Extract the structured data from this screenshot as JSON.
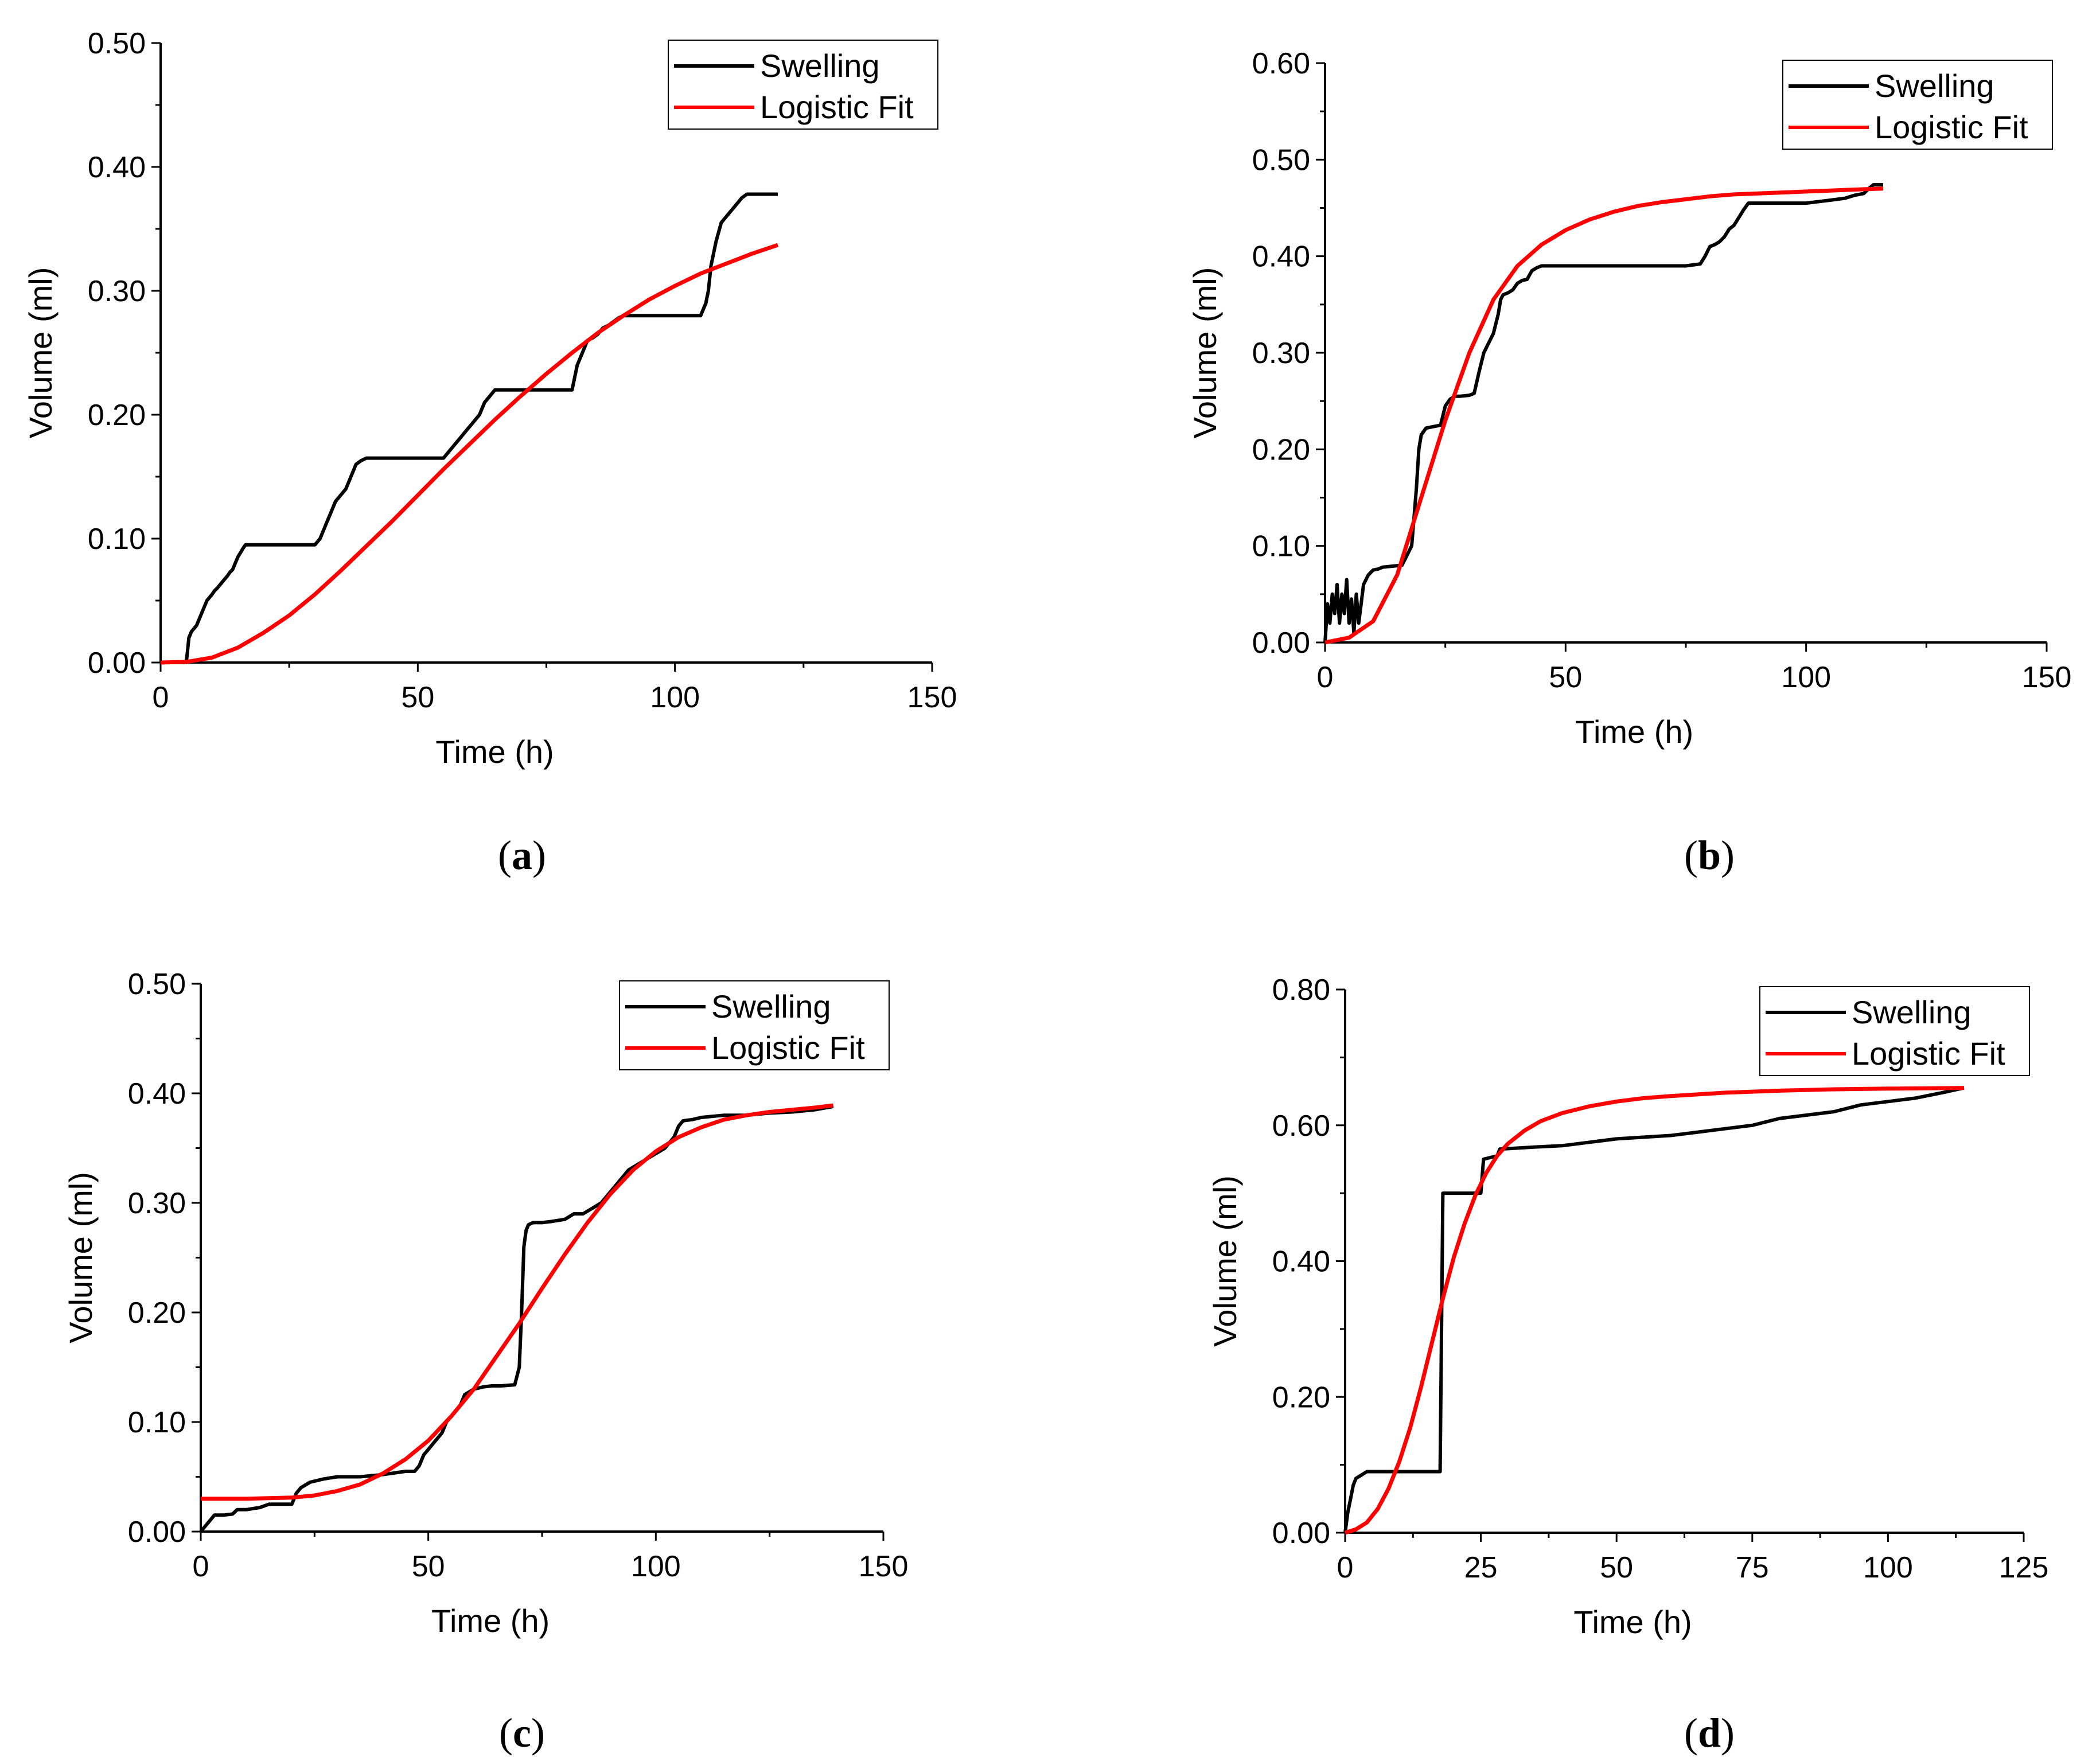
{
  "chart_data": [
    {
      "id": "a",
      "panel_label": "a",
      "type": "line",
      "xlabel": "Time (h)",
      "ylabel": "Volume (ml)",
      "xlim": [
        0,
        150
      ],
      "ylim": [
        0,
        0.5
      ],
      "xticks": [
        0,
        50,
        100,
        150
      ],
      "xtick_labels": [
        "0",
        "50",
        "100",
        "150"
      ],
      "yticks": [
        0,
        0.1,
        0.2,
        0.3,
        0.4,
        0.5
      ],
      "ytick_labels": [
        "0.00",
        "0.10",
        "0.20",
        "0.30",
        "0.40",
        "0.50"
      ],
      "legend_position": "top-right",
      "series": [
        {
          "name": "Swelling",
          "color": "#000000",
          "x": [
            0,
            5,
            5.5,
            6,
            7,
            8,
            9,
            10,
            10.5,
            11,
            12,
            13,
            13.5,
            14,
            15,
            16,
            16.5,
            22,
            30,
            31,
            32,
            33,
            34,
            35,
            36,
            37,
            38,
            39,
            40,
            55,
            56,
            57,
            58,
            59,
            60,
            61,
            62,
            63,
            64,
            65,
            70,
            80,
            81,
            82,
            83,
            84,
            85,
            86,
            87,
            88,
            89,
            90,
            100,
            105,
            106,
            106.5,
            107,
            108,
            109,
            110,
            111,
            112,
            113,
            114,
            120
          ],
          "y": [
            0,
            0,
            0.02,
            0.025,
            0.03,
            0.04,
            0.05,
            0.055,
            0.058,
            0.06,
            0.065,
            0.07,
            0.073,
            0.075,
            0.085,
            0.092,
            0.095,
            0.095,
            0.095,
            0.1,
            0.11,
            0.12,
            0.13,
            0.135,
            0.14,
            0.15,
            0.16,
            0.163,
            0.165,
            0.165,
            0.17,
            0.175,
            0.18,
            0.185,
            0.19,
            0.195,
            0.2,
            0.21,
            0.215,
            0.22,
            0.22,
            0.22,
            0.24,
            0.25,
            0.26,
            0.262,
            0.265,
            0.27,
            0.272,
            0.275,
            0.278,
            0.28,
            0.28,
            0.28,
            0.29,
            0.3,
            0.32,
            0.34,
            0.355,
            0.36,
            0.365,
            0.37,
            0.375,
            0.378,
            0.378
          ]
        },
        {
          "name": "Logistic Fit",
          "color": "#ff0000",
          "x": [
            0,
            5,
            10,
            15,
            20,
            25,
            30,
            35,
            40,
            45,
            50,
            55,
            60,
            65,
            70,
            75,
            80,
            85,
            90,
            95,
            100,
            105,
            110,
            115,
            120
          ],
          "y": [
            0,
            0.0005,
            0.004,
            0.012,
            0.024,
            0.038,
            0.055,
            0.074,
            0.094,
            0.114,
            0.135,
            0.156,
            0.176,
            0.196,
            0.215,
            0.233,
            0.25,
            0.266,
            0.28,
            0.293,
            0.304,
            0.314,
            0.322,
            0.33,
            0.337
          ]
        }
      ]
    },
    {
      "id": "b",
      "panel_label": "b",
      "type": "line",
      "xlabel": "Time (h)",
      "ylabel": "Volume (ml)",
      "xlim": [
        0,
        150
      ],
      "ylim": [
        0,
        0.6
      ],
      "xticks": [
        0,
        50,
        100,
        150
      ],
      "xtick_labels": [
        "0",
        "50",
        "100",
        "150"
      ],
      "yticks": [
        0,
        0.1,
        0.2,
        0.3,
        0.4,
        0.5,
        0.6
      ],
      "ytick_labels": [
        "0.00",
        "0.10",
        "0.20",
        "0.30",
        "0.40",
        "0.50",
        "0.60"
      ],
      "legend_position": "top-right",
      "series": [
        {
          "name": "Swelling",
          "color": "#000000",
          "x": [
            0,
            0.5,
            1,
            1.5,
            2,
            2.5,
            3,
            3.5,
            4,
            4.5,
            5,
            5.5,
            6,
            6.5,
            7,
            7.5,
            8,
            9,
            10,
            11,
            12,
            14,
            16,
            17,
            18,
            18.5,
            19,
            19.5,
            20,
            21,
            22,
            23,
            24,
            25,
            26,
            27,
            28,
            30,
            31,
            32,
            33,
            34,
            35,
            36,
            36.5,
            37,
            38,
            39,
            40,
            41,
            42,
            43,
            44,
            45,
            50,
            60,
            70,
            75,
            78,
            79,
            80,
            81,
            82,
            83,
            84,
            85,
            86,
            87,
            88,
            90,
            100,
            105,
            108,
            110,
            112,
            113,
            114,
            115,
            116
          ],
          "y": [
            0,
            0.04,
            0.02,
            0.05,
            0.03,
            0.06,
            0.02,
            0.05,
            0.03,
            0.065,
            0.02,
            0.045,
            0.01,
            0.05,
            0.02,
            0.04,
            0.06,
            0.07,
            0.075,
            0.076,
            0.078,
            0.079,
            0.08,
            0.09,
            0.1,
            0.13,
            0.16,
            0.2,
            0.215,
            0.222,
            0.223,
            0.224,
            0.225,
            0.245,
            0.252,
            0.255,
            0.255,
            0.256,
            0.258,
            0.28,
            0.3,
            0.31,
            0.32,
            0.34,
            0.355,
            0.36,
            0.362,
            0.365,
            0.372,
            0.375,
            0.376,
            0.385,
            0.388,
            0.39,
            0.39,
            0.39,
            0.39,
            0.39,
            0.392,
            0.4,
            0.41,
            0.412,
            0.415,
            0.42,
            0.428,
            0.432,
            0.44,
            0.448,
            0.455,
            0.455,
            0.455,
            0.458,
            0.46,
            0.463,
            0.465,
            0.47,
            0.474,
            0.474,
            0.474
          ]
        },
        {
          "name": "Logistic Fit",
          "color": "#ff0000",
          "x": [
            0,
            5,
            10,
            15,
            20,
            25,
            30,
            35,
            40,
            45,
            50,
            55,
            60,
            65,
            70,
            75,
            80,
            85,
            90,
            95,
            100,
            105,
            110,
            116
          ],
          "y": [
            0,
            0.005,
            0.022,
            0.07,
            0.15,
            0.23,
            0.3,
            0.355,
            0.39,
            0.412,
            0.427,
            0.438,
            0.446,
            0.452,
            0.456,
            0.459,
            0.462,
            0.464,
            0.465,
            0.466,
            0.467,
            0.468,
            0.469,
            0.47
          ]
        }
      ]
    },
    {
      "id": "c",
      "panel_label": "c",
      "type": "line",
      "xlabel": "Time (h)",
      "ylabel": "Volume (ml)",
      "xlim": [
        0,
        150
      ],
      "ylim": [
        0,
        0.5
      ],
      "xticks": [
        0,
        50,
        100,
        150
      ],
      "xtick_labels": [
        "0",
        "50",
        "100",
        "150"
      ],
      "yticks": [
        0,
        0.1,
        0.2,
        0.3,
        0.4,
        0.5
      ],
      "ytick_labels": [
        "0.00",
        "0.10",
        "0.20",
        "0.30",
        "0.40",
        "0.50"
      ],
      "legend_position": "top-right",
      "series": [
        {
          "name": "Swelling",
          "color": "#000000",
          "x": [
            0,
            1,
            2,
            3,
            5,
            7,
            8,
            10,
            13,
            15,
            20,
            21,
            22,
            24,
            27,
            30,
            35,
            40,
            45,
            47,
            48,
            49,
            50,
            51,
            52,
            53,
            54,
            55,
            56,
            57,
            58,
            60,
            62,
            64,
            66,
            69,
            70,
            70.5,
            71,
            71.5,
            72,
            73,
            75,
            77,
            80,
            82,
            84,
            86,
            88,
            90,
            92,
            94,
            96,
            98,
            100,
            102,
            103,
            104,
            105,
            106,
            108,
            110,
            115,
            120,
            125,
            130,
            135,
            139
          ],
          "y": [
            0,
            0.005,
            0.01,
            0.015,
            0.015,
            0.016,
            0.02,
            0.02,
            0.022,
            0.025,
            0.025,
            0.035,
            0.04,
            0.045,
            0.048,
            0.05,
            0.05,
            0.052,
            0.055,
            0.055,
            0.06,
            0.07,
            0.075,
            0.08,
            0.085,
            0.09,
            0.1,
            0.105,
            0.11,
            0.115,
            0.125,
            0.13,
            0.132,
            0.133,
            0.133,
            0.134,
            0.15,
            0.2,
            0.26,
            0.275,
            0.28,
            0.282,
            0.282,
            0.283,
            0.285,
            0.29,
            0.29,
            0.295,
            0.3,
            0.31,
            0.32,
            0.33,
            0.335,
            0.34,
            0.345,
            0.35,
            0.355,
            0.36,
            0.37,
            0.375,
            0.376,
            0.378,
            0.38,
            0.38,
            0.382,
            0.383,
            0.385,
            0.388
          ]
        },
        {
          "name": "Logistic Fit",
          "color": "#ff0000",
          "x": [
            0,
            10,
            20,
            25,
            30,
            35,
            40,
            45,
            50,
            55,
            60,
            65,
            70,
            75,
            80,
            85,
            90,
            95,
            100,
            105,
            110,
            115,
            120,
            125,
            130,
            135,
            139
          ],
          "y": [
            0.03,
            0.03,
            0.031,
            0.033,
            0.037,
            0.043,
            0.053,
            0.066,
            0.083,
            0.105,
            0.13,
            0.16,
            0.19,
            0.222,
            0.253,
            0.282,
            0.308,
            0.33,
            0.347,
            0.36,
            0.369,
            0.376,
            0.38,
            0.383,
            0.385,
            0.387,
            0.389
          ]
        }
      ]
    },
    {
      "id": "d",
      "panel_label": "d",
      "type": "line",
      "xlabel": "Time (h)",
      "ylabel": "Volume (ml)",
      "xlim": [
        0,
        125
      ],
      "ylim": [
        0,
        0.8
      ],
      "xticks": [
        0,
        25,
        50,
        75,
        100,
        125
      ],
      "xtick_labels": [
        "0",
        "25",
        "50",
        "75",
        "100",
        "125"
      ],
      "yticks": [
        0,
        0.2,
        0.4,
        0.6,
        0.8
      ],
      "ytick_labels": [
        "0.00",
        "0.20",
        "0.40",
        "0.60",
        "0.80"
      ],
      "legend_position": "top-right",
      "series": [
        {
          "name": "Swelling",
          "color": "#000000",
          "x": [
            0,
            0.5,
            1,
            1.5,
            2,
            3,
            4,
            17.5,
            18,
            25,
            25.5,
            28,
            28.5,
            35,
            40,
            45,
            50,
            60,
            65,
            70,
            75,
            80,
            85,
            90,
            95,
            100,
            105,
            110,
            114
          ],
          "y": [
            0,
            0.03,
            0.05,
            0.07,
            0.08,
            0.085,
            0.09,
            0.09,
            0.5,
            0.5,
            0.55,
            0.555,
            0.565,
            0.568,
            0.57,
            0.575,
            0.58,
            0.585,
            0.59,
            0.595,
            0.6,
            0.61,
            0.615,
            0.62,
            0.63,
            0.635,
            0.64,
            0.648,
            0.655
          ]
        },
        {
          "name": "Logistic Fit",
          "color": "#ff0000",
          "x": [
            0,
            2,
            4,
            6,
            8,
            10,
            12,
            14,
            16,
            18,
            20,
            22,
            24,
            26,
            28,
            30,
            33,
            36,
            40,
            45,
            50,
            55,
            60,
            70,
            80,
            90,
            100,
            114
          ],
          "y": [
            0,
            0.005,
            0.015,
            0.035,
            0.065,
            0.105,
            0.155,
            0.215,
            0.28,
            0.345,
            0.405,
            0.455,
            0.497,
            0.53,
            0.555,
            0.573,
            0.592,
            0.606,
            0.618,
            0.628,
            0.635,
            0.64,
            0.643,
            0.648,
            0.651,
            0.653,
            0.654,
            0.655
          ]
        }
      ]
    }
  ]
}
